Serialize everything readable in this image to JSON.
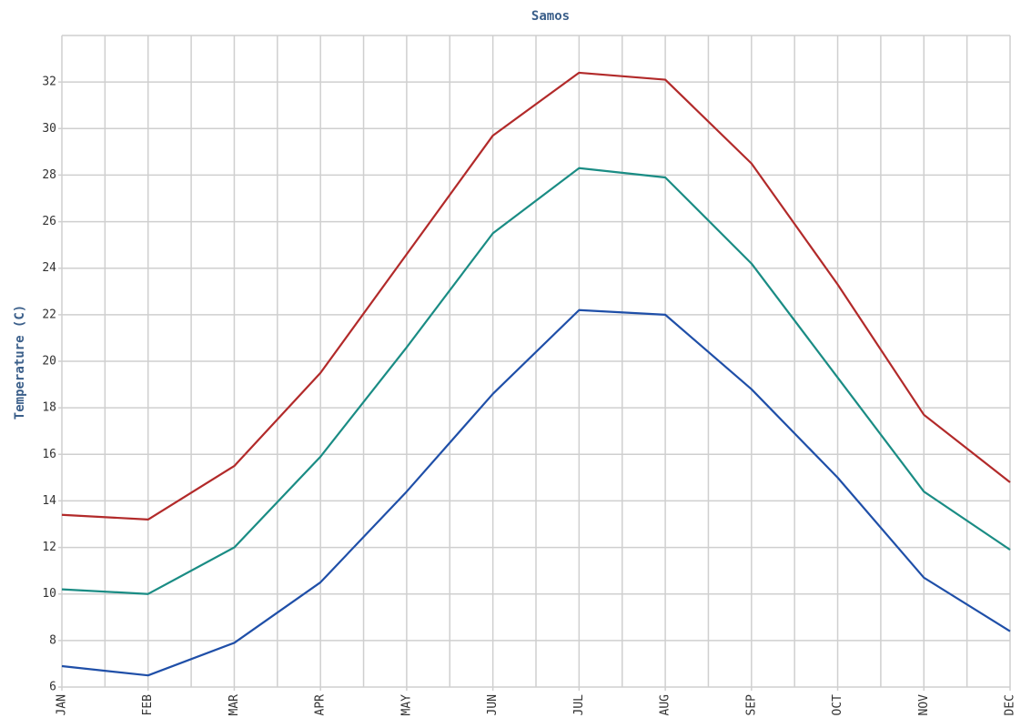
{
  "chart_data": {
    "type": "line",
    "title": "Samos",
    "y_label": "Temperature (C)",
    "categories": [
      "JAN",
      "FEB",
      "MAR",
      "APR",
      "MAY",
      "JUN",
      "JUL",
      "AUG",
      "SEP",
      "OCT",
      "NOV",
      "DEC"
    ],
    "series": [
      {
        "color": "#b22a2a",
        "values": [
          13.4,
          13.2,
          15.5,
          19.5,
          24.6,
          29.7,
          32.4,
          32.1,
          28.5,
          23.3,
          17.7,
          14.8
        ]
      },
      {
        "color": "#1a8c84",
        "values": [
          10.2,
          10.0,
          12.0,
          15.9,
          20.6,
          25.5,
          28.3,
          27.9,
          24.2,
          19.3,
          14.4,
          11.9
        ]
      },
      {
        "color": "#1f4fa8",
        "values": [
          6.9,
          6.5,
          7.9,
          10.5,
          14.4,
          18.6,
          22.2,
          22.0,
          18.8,
          15.0,
          10.7,
          8.4
        ]
      }
    ],
    "ylim": [
      6,
      34
    ],
    "yticks": [
      6,
      8,
      10,
      12,
      14,
      16,
      18,
      20,
      22,
      24,
      26,
      28,
      30,
      32
    ],
    "grid": true
  }
}
